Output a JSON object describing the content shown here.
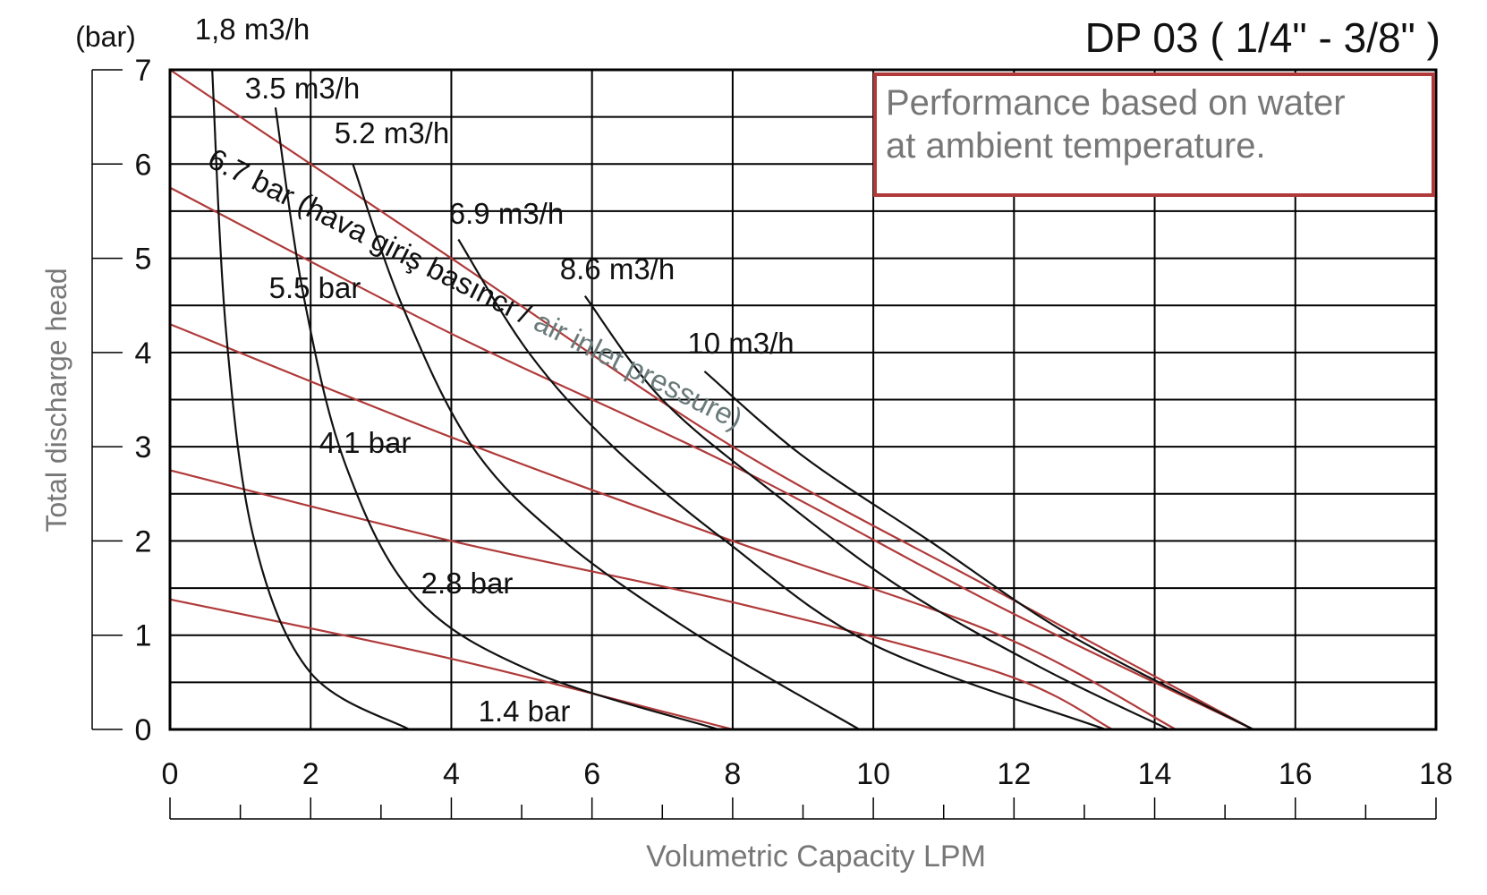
{
  "chart_data": {
    "type": "line",
    "title": "DP 03 ( 1/4\" - 3/8\" )",
    "xlabel": "Volumetric Capacity LPM",
    "ylabel": "Total discharge head",
    "yunit": "(bar)",
    "xlim": [
      0,
      18
    ],
    "ylim": [
      0,
      7
    ],
    "xticks": [
      "0",
      "2",
      "4",
      "6",
      "8",
      "10",
      "12",
      "14",
      "16",
      "18"
    ],
    "yticks": [
      "0",
      "1",
      "2",
      "3",
      "4",
      "5",
      "6",
      "7"
    ],
    "grid": true,
    "note": "Performance based on water at ambient temperature.",
    "pressure_curves": [
      {
        "name": "6.7 bar (hava giriş basıncı / air inlet pressure)",
        "points": [
          [
            0,
            7.0
          ],
          [
            4,
            5.0
          ],
          [
            8,
            3.0
          ],
          [
            11.8,
            1.45
          ],
          [
            15.4,
            0
          ]
        ]
      },
      {
        "name": "5.5 bar",
        "points": [
          [
            0,
            5.75
          ],
          [
            4,
            4.2
          ],
          [
            8,
            2.8
          ],
          [
            11.8,
            1.3
          ],
          [
            15.4,
            0
          ]
        ]
      },
      {
        "name": "4.1 bar",
        "points": [
          [
            0,
            4.3
          ],
          [
            4,
            3.1
          ],
          [
            8,
            2.0
          ],
          [
            11.8,
            1.0
          ],
          [
            14.3,
            0
          ]
        ]
      },
      {
        "name": "2.8 bar",
        "points": [
          [
            0,
            2.75
          ],
          [
            4,
            2.0
          ],
          [
            8,
            1.35
          ],
          [
            11.8,
            0.6
          ],
          [
            13.4,
            0
          ]
        ]
      },
      {
        "name": "1.4 bar",
        "points": [
          [
            0,
            1.38
          ],
          [
            4,
            0.75
          ],
          [
            8,
            0
          ]
        ]
      }
    ],
    "flow_curves": [
      {
        "name": "1,8 m3/h",
        "points": [
          [
            0.6,
            7.0
          ],
          [
            0.8,
            4.2
          ],
          [
            1.2,
            2.0
          ],
          [
            2.0,
            0.6
          ],
          [
            3.4,
            0
          ]
        ]
      },
      {
        "name": "3.5 m3/h",
        "points": [
          [
            1.5,
            6.6
          ],
          [
            1.9,
            4.6
          ],
          [
            2.5,
            2.8
          ],
          [
            3.5,
            1.4
          ],
          [
            5.2,
            0.6
          ],
          [
            7.8,
            0
          ]
        ]
      },
      {
        "name": "5.2 m3/h",
        "points": [
          [
            2.6,
            6.0
          ],
          [
            3.3,
            4.5
          ],
          [
            4.3,
            3.0
          ],
          [
            5.6,
            2.0
          ],
          [
            7.5,
            1.0
          ],
          [
            9.8,
            0
          ]
        ]
      },
      {
        "name": "6.9 m3/h",
        "points": [
          [
            4.1,
            5.2
          ],
          [
            5.1,
            4.0
          ],
          [
            6.3,
            3.0
          ],
          [
            7.9,
            2.0
          ],
          [
            10.0,
            0.9
          ],
          [
            13.3,
            0
          ]
        ]
      },
      {
        "name": "8.6 m3/h",
        "points": [
          [
            5.9,
            4.6
          ],
          [
            7.0,
            3.5
          ],
          [
            8.6,
            2.5
          ],
          [
            10.4,
            1.5
          ],
          [
            12.4,
            0.65
          ],
          [
            14.2,
            0
          ]
        ]
      },
      {
        "name": "10 m3/h",
        "points": [
          [
            7.6,
            3.8
          ],
          [
            9.0,
            2.9
          ],
          [
            10.8,
            2.0
          ],
          [
            12.8,
            1.0
          ],
          [
            15.4,
            0
          ]
        ]
      }
    ]
  }
}
